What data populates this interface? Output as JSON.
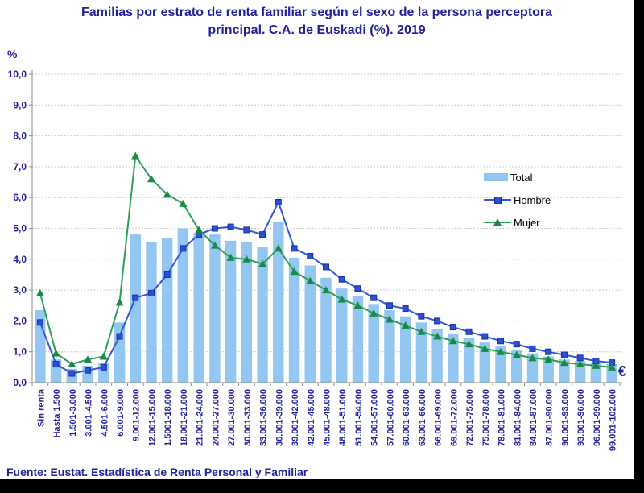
{
  "title": {
    "line1": "Familias por estrato de renta familiar según el sexo de la persona perceptora",
    "line2": "principal. C.A. de Euskadi (%). 2019"
  },
  "axes": {
    "y_unit": "%",
    "x_unit": "€"
  },
  "footer": {
    "source": "Fuente: Eustat. Estadística de Renta Personal y Familiar"
  },
  "colors": {
    "text_navy": "#21219B",
    "legend_text": "#000000",
    "gridline": "#C9C9C9",
    "axis": "#8C8C8C",
    "background": "#FFFFFF",
    "frame_edge": "#000000"
  },
  "chart_data": {
    "type": "bar",
    "title": "Familias por estrato de renta familiar según el sexo de la persona perceptora principal. C.A. de Euskadi (%). 2019",
    "xlabel": "€",
    "ylabel": "%",
    "ylim": [
      0,
      10
    ],
    "ytick_labels": [
      "0,0",
      "1,0",
      "2,0",
      "3,0",
      "4,0",
      "5,0",
      "6,0",
      "7,0",
      "8,0",
      "9,0",
      "10,0"
    ],
    "grid": "horizontal-dashed",
    "legend_position": "right-inside",
    "categories": [
      "Sin renta",
      "Hasta 1.500",
      "1.501-3.000",
      "3.001-4.500",
      "4.501-6.000",
      "6.001-9.000",
      "9.001-12.000",
      "12.001-15.000",
      "1.5001-18.000",
      "18.001-21.000",
      "21.001-24.000",
      "24.001-27.000",
      "27.001-30.000",
      "30.001-33.000",
      "33.001-36.000",
      "36.001-39.000",
      "39.001-42.000",
      "42.001-45.000",
      "45.001-48.000",
      "48.001-51.000",
      "51.001-54.000",
      "54.001-57.000",
      "57.001-60.000",
      "60.001-63.000",
      "63.001-66.000",
      "66.001-69.000",
      "69.001-72.000",
      "72.001-75.000",
      "75.001-78.000",
      "78.001-81.000",
      "81.001-84.000",
      "84.001-87.000",
      "87.001-90.000",
      "90.001-93.000",
      "93.001-96.000",
      "96.001-99.000",
      "99.001-102.000"
    ],
    "series": [
      {
        "name": "Total",
        "type": "bar",
        "color": "#93C6F1",
        "values": [
          2.35,
          0.75,
          0.45,
          0.55,
          0.65,
          1.95,
          4.8,
          4.55,
          4.7,
          5.0,
          4.85,
          4.8,
          4.6,
          4.55,
          4.4,
          5.2,
          4.05,
          3.8,
          3.4,
          3.05,
          2.8,
          2.55,
          2.35,
          2.15,
          1.95,
          1.75,
          1.6,
          1.45,
          1.3,
          1.2,
          1.05,
          0.95,
          0.85,
          0.75,
          0.7,
          0.65,
          0.6
        ]
      },
      {
        "name": "Hombre",
        "type": "line",
        "marker": "square",
        "color": "#3356D4",
        "marker_color": "#2A50D8",
        "values": [
          1.95,
          0.6,
          0.3,
          0.4,
          0.5,
          1.5,
          2.75,
          2.9,
          3.5,
          4.35,
          4.8,
          5.0,
          5.05,
          4.95,
          4.8,
          5.85,
          4.35,
          4.1,
          3.75,
          3.35,
          3.05,
          2.75,
          2.5,
          2.4,
          2.15,
          2.0,
          1.8,
          1.65,
          1.5,
          1.35,
          1.25,
          1.1,
          1.0,
          0.9,
          0.8,
          0.7,
          0.65
        ]
      },
      {
        "name": "Mujer",
        "type": "line",
        "marker": "triangle",
        "color": "#2F9E58",
        "marker_color": "#188A46",
        "values": [
          2.9,
          0.95,
          0.6,
          0.75,
          0.85,
          2.6,
          7.35,
          6.6,
          6.1,
          5.8,
          4.95,
          4.45,
          4.05,
          4.0,
          3.85,
          4.35,
          3.6,
          3.3,
          3.0,
          2.7,
          2.5,
          2.25,
          2.05,
          1.85,
          1.65,
          1.5,
          1.35,
          1.25,
          1.1,
          1.0,
          0.9,
          0.8,
          0.75,
          0.65,
          0.6,
          0.55,
          0.5
        ]
      }
    ]
  }
}
